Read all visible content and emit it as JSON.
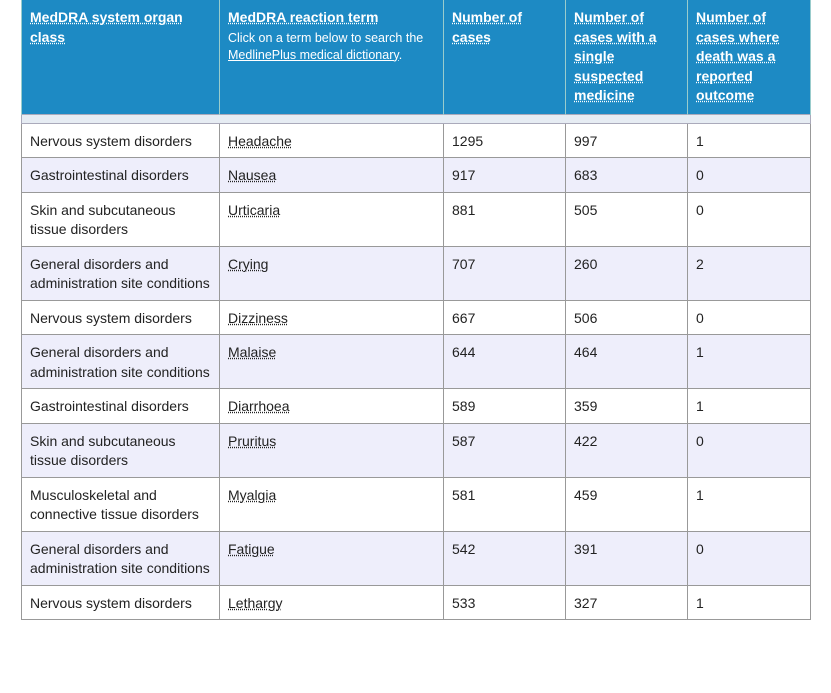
{
  "table": {
    "columns": [
      {
        "title": "MedDRA system organ class"
      },
      {
        "title": "MedDRA reaction term",
        "note_prefix": "Click on a term below to search the ",
        "note_link": "MedlinePlus medical dictionary",
        "note_suffix": "."
      },
      {
        "title": "Number of cases"
      },
      {
        "title": "Number of cases with a single suspected medicine"
      },
      {
        "title": "Number of cases where death was a reported outcome"
      }
    ],
    "rows": [
      [
        "Nervous system disorders",
        "Headache",
        1295,
        997,
        1
      ],
      [
        "Gastrointestinal disorders",
        "Nausea",
        917,
        683,
        0
      ],
      [
        "Skin and subcutaneous tissue disorders",
        "Urticaria",
        881,
        505,
        0
      ],
      [
        "General disorders and administration site conditions",
        "Crying",
        707,
        260,
        2
      ],
      [
        "Nervous system disorders",
        "Dizziness",
        667,
        506,
        0
      ],
      [
        "General disorders and administration site conditions",
        "Malaise",
        644,
        464,
        1
      ],
      [
        "Gastrointestinal disorders",
        "Diarrhoea",
        589,
        359,
        1
      ],
      [
        "Skin and subcutaneous tissue disorders",
        "Pruritus",
        587,
        422,
        0
      ],
      [
        "Musculoskeletal and connective tissue disorders",
        "Myalgia",
        581,
        459,
        1
      ],
      [
        "General disorders and administration site conditions",
        "Fatigue",
        542,
        391,
        0
      ],
      [
        "Nervous system disorders",
        "Lethargy",
        533,
        327,
        1
      ]
    ]
  }
}
